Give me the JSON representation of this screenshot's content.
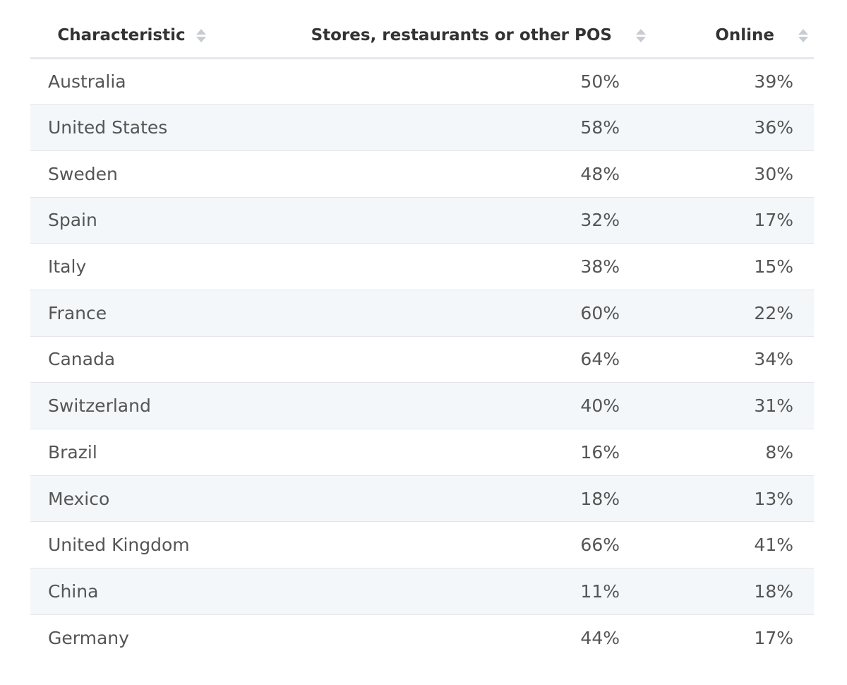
{
  "chart_data": {
    "type": "table",
    "columns": [
      "Characteristic",
      "Stores, restaurants or other POS",
      "Online"
    ],
    "rows": [
      {
        "country": "Australia",
        "stores": "50%",
        "online": "39%"
      },
      {
        "country": "United States",
        "stores": "58%",
        "online": "36%"
      },
      {
        "country": "Sweden",
        "stores": "48%",
        "online": "30%"
      },
      {
        "country": "Spain",
        "stores": "32%",
        "online": "17%"
      },
      {
        "country": "Italy",
        "stores": "38%",
        "online": "15%"
      },
      {
        "country": "France",
        "stores": "60%",
        "online": "22%"
      },
      {
        "country": "Canada",
        "stores": "64%",
        "online": "34%"
      },
      {
        "country": "Switzerland",
        "stores": "40%",
        "online": "31%"
      },
      {
        "country": "Brazil",
        "stores": "16%",
        "online": "8%"
      },
      {
        "country": "Mexico",
        "stores": "18%",
        "online": "13%"
      },
      {
        "country": "United Kingdom",
        "stores": "66%",
        "online": "41%"
      },
      {
        "country": "China",
        "stores": "11%",
        "online": "18%"
      },
      {
        "country": "Germany",
        "stores": "44%",
        "online": "17%"
      }
    ]
  },
  "colors": {
    "header_text": "#333333",
    "cell_text": "#555555",
    "row_alt_background": "#f4f7fa",
    "divider": "#e3e6ea",
    "sort_icon": "#c8ccd1"
  }
}
